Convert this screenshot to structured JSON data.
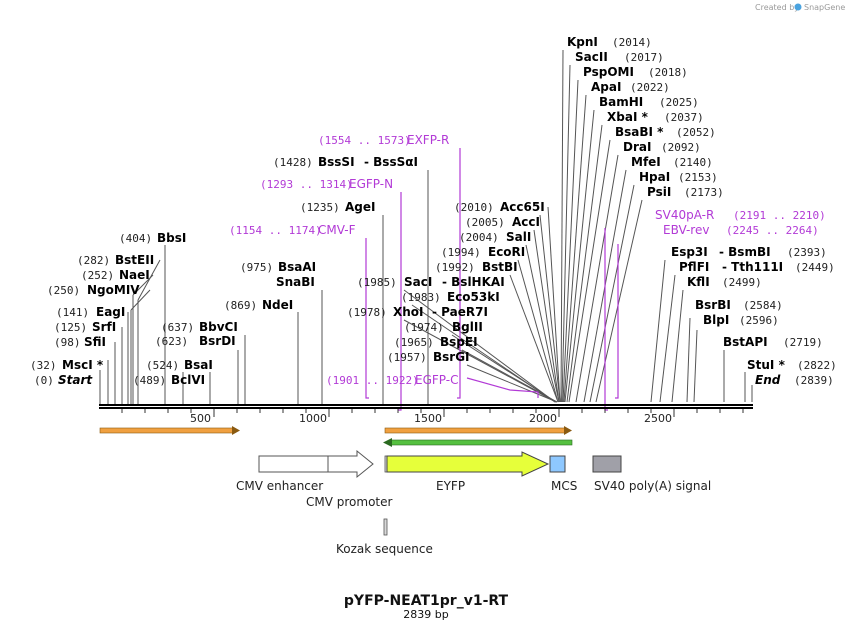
{
  "header": {
    "credit_prefix": "Created by",
    "credit_app": "SnapGene"
  },
  "map": {
    "name": "pYFP-NEAT1pr_v1-RT",
    "length_label": "2839 bp",
    "length": 2839,
    "ticks": [
      "500",
      "1000",
      "1500",
      "2000",
      "2500"
    ]
  },
  "sites": [
    {
      "pos": "(0)",
      "name": "Start"
    },
    {
      "pos": "(32)",
      "name": "MscI *"
    },
    {
      "pos": "(98)",
      "name": "SfiI"
    },
    {
      "pos": "(125)",
      "name": "SrfI"
    },
    {
      "pos": "(141)",
      "name": "EagI"
    },
    {
      "pos": "(250)",
      "name": "NgoMIV"
    },
    {
      "pos": "(252)",
      "name": "NaeI"
    },
    {
      "pos": "(282)",
      "name": "BstEII"
    },
    {
      "pos": "(404)",
      "name": "BbsI"
    },
    {
      "pos": "(489)",
      "name": "BclVI"
    },
    {
      "pos": "(524)",
      "name": "BsaI"
    },
    {
      "pos": "(623)",
      "name": "BsrDI"
    },
    {
      "pos": "(637)",
      "name": "BbvCI"
    },
    {
      "pos": "(869)",
      "name": "NdeI"
    },
    {
      "pos": "(975)",
      "name": "BsaAI"
    },
    {
      "pos": "",
      "name": "SnaBI"
    },
    {
      "pos": "(1235)",
      "name": "AgeI"
    },
    {
      "pos": "(1428)",
      "name": "BssSI"
    },
    {
      "pos": "",
      "name": "- BssSαI"
    },
    {
      "pos": "(1985)",
      "name": "SacI"
    },
    {
      "pos": "",
      "name": "- BslHKAI"
    },
    {
      "pos": "(1983)",
      "name": "Eco53kI"
    },
    {
      "pos": "(1978)",
      "name": "XhoI"
    },
    {
      "pos": "",
      "name": "- PaeR7I"
    },
    {
      "pos": "(1974)",
      "name": "BglII"
    },
    {
      "pos": "(1965)",
      "name": "BspEI"
    },
    {
      "pos": "(1957)",
      "name": "BsrGI"
    },
    {
      "pos": "(1992)",
      "name": "BstBI"
    },
    {
      "pos": "(1994)",
      "name": "EcoRI"
    },
    {
      "pos": "(2004)",
      "name": "SalI"
    },
    {
      "pos": "(2005)",
      "name": "AccI"
    },
    {
      "pos": "(2010)",
      "name": "Acc65I"
    },
    {
      "pos": "(2014)",
      "name": "KpnI"
    },
    {
      "pos": "(2017)",
      "name": "SacII"
    },
    {
      "pos": "(2018)",
      "name": "PspOMI"
    },
    {
      "pos": "(2022)",
      "name": "ApaI"
    },
    {
      "pos": "(2025)",
      "name": "BamHI"
    },
    {
      "pos": "(2037)",
      "name": "XbaI *"
    },
    {
      "pos": "(2052)",
      "name": "BsaBI *"
    },
    {
      "pos": "(2092)",
      "name": "DraI"
    },
    {
      "pos": "(2140)",
      "name": "MfeI"
    },
    {
      "pos": "(2153)",
      "name": "HpaI"
    },
    {
      "pos": "(2173)",
      "name": "PsiI"
    },
    {
      "pos": "(2393)",
      "name": "Esp3I"
    },
    {
      "pos": "",
      "name": "- BsmBI"
    },
    {
      "pos": "(2449)",
      "name": "PflFI"
    },
    {
      "pos": "",
      "name": "- Tth111I"
    },
    {
      "pos": "(2499)",
      "name": "KflI"
    },
    {
      "pos": "(2584)",
      "name": "BsrBI"
    },
    {
      "pos": "(2596)",
      "name": "BlpI"
    },
    {
      "pos": "(2719)",
      "name": "BstAPI"
    },
    {
      "pos": "(2822)",
      "name": "StuI *"
    },
    {
      "pos": "(2839)",
      "name": "End"
    }
  ],
  "primers": [
    {
      "range": "(1154 .. 1174)",
      "name": "CMV-F"
    },
    {
      "range": "(1293 .. 1314)",
      "name": "EGFP-N"
    },
    {
      "range": "(1554 .. 1573)",
      "name": "EXFP-R"
    },
    {
      "range": "(1901 .. 1922)",
      "name": "EGFP-C"
    },
    {
      "range": "(2191 .. 2210)",
      "name": "SV40pA-R"
    },
    {
      "range": "(2245 .. 2264)",
      "name": "EBV-rev"
    }
  ],
  "features": [
    {
      "name": "CMV enhancer"
    },
    {
      "name": "CMV promoter"
    },
    {
      "name": "EYFP"
    },
    {
      "name": "MCS"
    },
    {
      "name": "SV40 poly(A) signal"
    },
    {
      "name": "Kozak sequence"
    }
  ],
  "colors": {
    "primer": "#b23ad6",
    "orf_orange": "#f0a040",
    "orf_green": "#55c040",
    "eyfp": "#e6ff3a",
    "mcs": "#8ec8ff",
    "polya": "#a0a0a8"
  }
}
